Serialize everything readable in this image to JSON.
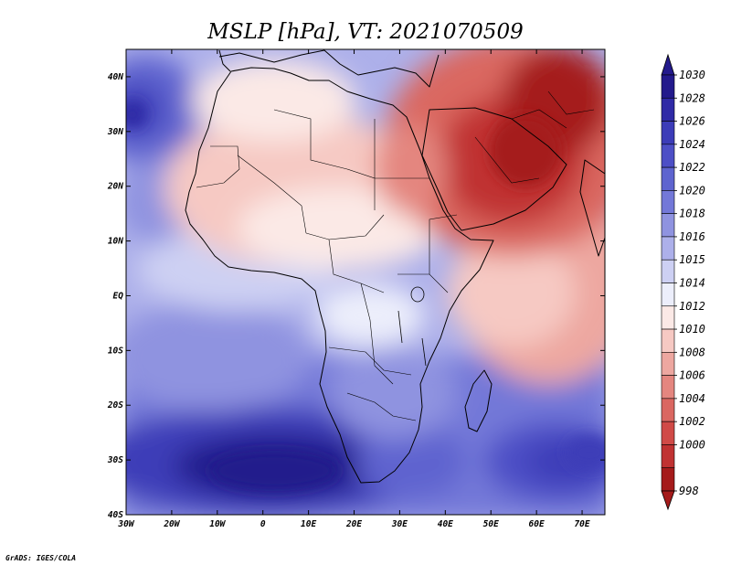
{
  "title": "MSLP [hPa], VT: 2021070509",
  "credit": "GrADS: IGES/COLA",
  "map": {
    "lon_range": [
      -30,
      75
    ],
    "lat_range": [
      -40,
      45
    ],
    "lon_ticks": [
      {
        "v": -30,
        "label": "30W"
      },
      {
        "v": -20,
        "label": "20W"
      },
      {
        "v": -10,
        "label": "10W"
      },
      {
        "v": 0,
        "label": "0"
      },
      {
        "v": 10,
        "label": "10E"
      },
      {
        "v": 20,
        "label": "20E"
      },
      {
        "v": 30,
        "label": "30E"
      },
      {
        "v": 40,
        "label": "40E"
      },
      {
        "v": 50,
        "label": "50E"
      },
      {
        "v": 60,
        "label": "60E"
      },
      {
        "v": 70,
        "label": "70E"
      }
    ],
    "lat_ticks": [
      {
        "v": 40,
        "label": "40N"
      },
      {
        "v": 30,
        "label": "30N"
      },
      {
        "v": 20,
        "label": "20N"
      },
      {
        "v": 10,
        "label": "10N"
      },
      {
        "v": 0,
        "label": "EQ"
      },
      {
        "v": -10,
        "label": "10S"
      },
      {
        "v": -20,
        "label": "20S"
      },
      {
        "v": -30,
        "label": "30S"
      },
      {
        "v": -40,
        "label": "40S"
      }
    ]
  },
  "colorbar": {
    "top_color": "#231a8c",
    "bottom_color": "#a51b1b",
    "levels": [
      {
        "label": "1030",
        "color": "#231a8c"
      },
      {
        "label": "1028",
        "color": "#2f2aa6"
      },
      {
        "label": "1026",
        "color": "#3c3cb8"
      },
      {
        "label": "1024",
        "color": "#4d4fc6"
      },
      {
        "label": "1022",
        "color": "#5e64cf"
      },
      {
        "label": "1020",
        "color": "#7378d8"
      },
      {
        "label": "1018",
        "color": "#8f93e0"
      },
      {
        "label": "1016",
        "color": "#adb0ea"
      },
      {
        "label": "1015",
        "color": "#cdd0f3"
      },
      {
        "label": "1014",
        "color": "#eceefb"
      },
      {
        "label": "1012",
        "color": "#fbe9e6"
      },
      {
        "label": "1010",
        "color": "#f6c9c3"
      },
      {
        "label": "1008",
        "color": "#eda7a0"
      },
      {
        "label": "1006",
        "color": "#e4867f"
      },
      {
        "label": "1004",
        "color": "#da6761"
      },
      {
        "label": "1002",
        "color": "#d04a47"
      },
      {
        "label": "1000",
        "color": "#c03232"
      },
      {
        "label": "998",
        "color": "#a51b1b"
      }
    ]
  }
}
